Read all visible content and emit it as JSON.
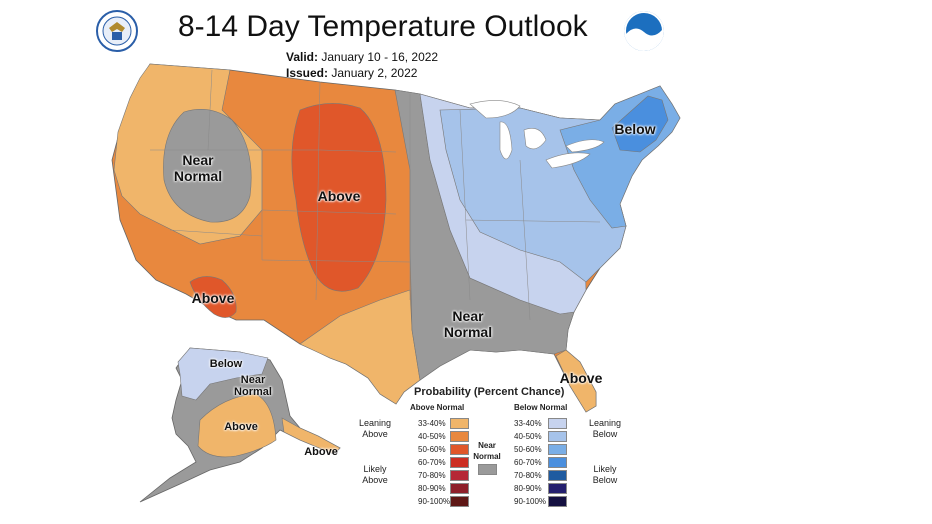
{
  "title": "8-14 Day Temperature Outlook",
  "valid_label": "Valid:",
  "valid_value": "January 10 - 16, 2022",
  "issued_label": "Issued:",
  "issued_value": "January 2, 2022",
  "logos": {
    "left": "seal-icon",
    "right": "noaa-icon"
  },
  "regions": {
    "near_normal_nw": [
      "Near",
      "Normal"
    ],
    "above_central": "Above",
    "above_sw": "Above",
    "below_ne": "Below",
    "near_normal_s": [
      "Near",
      "Normal"
    ],
    "above_fl": "Above",
    "ak_below": "Below",
    "ak_near_normal": [
      "Near",
      "Normal"
    ],
    "ak_above": "Above",
    "ak_above_se": "Above"
  },
  "legend": {
    "title": "Probability (Percent Chance)",
    "above_header": "Above Normal",
    "below_header": "Below Normal",
    "near_label": [
      "Near",
      "Normal"
    ],
    "leaning_above": [
      "Leaning",
      "Above"
    ],
    "likely_above": [
      "Likely",
      "Above"
    ],
    "leaning_below": [
      "Leaning",
      "Below"
    ],
    "likely_below": [
      "Likely",
      "Below"
    ],
    "above": [
      {
        "range": "33-40%",
        "color": "#f0b56a"
      },
      {
        "range": "40-50%",
        "color": "#e8883e"
      },
      {
        "range": "50-60%",
        "color": "#e0572a"
      },
      {
        "range": "60-70%",
        "color": "#cc2e22"
      },
      {
        "range": "70-80%",
        "color": "#b52735"
      },
      {
        "range": "80-90%",
        "color": "#8e1f2a"
      },
      {
        "range": "90-100%",
        "color": "#5e1715"
      }
    ],
    "below": [
      {
        "range": "33-40%",
        "color": "#c7d3ee"
      },
      {
        "range": "40-50%",
        "color": "#a6c3ea"
      },
      {
        "range": "50-60%",
        "color": "#7aaee6"
      },
      {
        "range": "60-70%",
        "color": "#4a8fde"
      },
      {
        "range": "70-80%",
        "color": "#1f5ba0"
      },
      {
        "range": "80-90%",
        "color": "#241f6e"
      },
      {
        "range": "90-100%",
        "color": "#141040"
      }
    ],
    "near_color": "#9a9a9a"
  }
}
